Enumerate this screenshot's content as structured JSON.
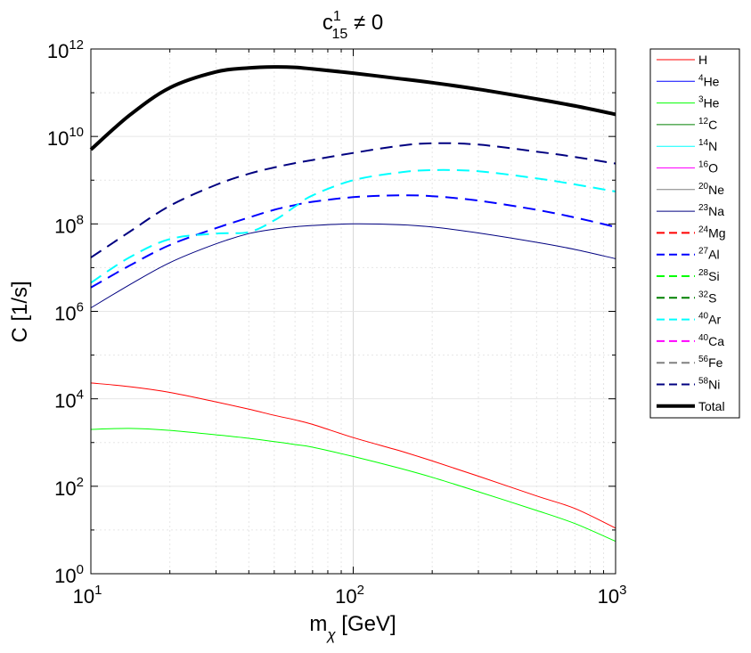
{
  "chart_data": {
    "type": "line",
    "title": {
      "base": "c",
      "sup": "1",
      "sub": "15",
      "rest": " ≠ 0"
    },
    "xlabel": {
      "base": "m",
      "sub": "χ",
      "rest": " [GeV]"
    },
    "ylabel": "C [1/s]",
    "xscale": "log",
    "yscale": "log",
    "xlim": [
      10,
      1000
    ],
    "ylim": [
      1,
      1000000000000
    ],
    "grid": true,
    "legend_position": "outside-right",
    "x_ticks": [
      {
        "value": 10,
        "base": "10",
        "exp": "1"
      },
      {
        "value": 100,
        "base": "10",
        "exp": "2"
      },
      {
        "value": 1000,
        "base": "10",
        "exp": "3"
      }
    ],
    "y_ticks": [
      {
        "value": 1,
        "base": "10",
        "exp": "0"
      },
      {
        "value": 100,
        "base": "10",
        "exp": "2"
      },
      {
        "value": 10000,
        "base": "10",
        "exp": "4"
      },
      {
        "value": 1000000,
        "base": "10",
        "exp": "6"
      },
      {
        "value": 100000000,
        "base": "10",
        "exp": "8"
      },
      {
        "value": 10000000000,
        "base": "10",
        "exp": "10"
      },
      {
        "value": 1000000000000,
        "base": "10",
        "exp": "12"
      }
    ],
    "x": [
      10,
      14,
      20,
      30,
      40,
      50,
      60,
      70,
      100,
      150,
      200,
      300,
      500,
      700,
      1000
    ],
    "series": [
      {
        "name": "H",
        "sup": "",
        "color": "#ff0000",
        "dash": "solid",
        "width": 1,
        "values": [
          23000,
          19000,
          14000,
          8500,
          5800,
          4200,
          3300,
          2600,
          1300,
          650,
          380,
          170,
          60,
          31,
          11
        ]
      },
      {
        "name": "He",
        "sup": "4",
        "color": "#0000ff",
        "dash": "solid",
        "width": 1,
        "values": null
      },
      {
        "name": "He",
        "sup": "3",
        "color": "#00ff00",
        "dash": "solid",
        "width": 1,
        "values": [
          2000,
          2100,
          1900,
          1500,
          1250,
          1050,
          900,
          780,
          480,
          260,
          160,
          75,
          28,
          14,
          5.5
        ]
      },
      {
        "name": "C",
        "sup": "12",
        "color": "#008000",
        "dash": "solid",
        "width": 1,
        "values": null
      },
      {
        "name": "N",
        "sup": "14",
        "color": "#00ffff",
        "dash": "solid",
        "width": 1,
        "values": null
      },
      {
        "name": "O",
        "sup": "16",
        "color": "#ff00ff",
        "dash": "solid",
        "width": 1,
        "values": null
      },
      {
        "name": "Ne",
        "sup": "20",
        "color": "#808080",
        "dash": "solid",
        "width": 1,
        "values": null
      },
      {
        "name": "Na",
        "sup": "23",
        "color": "#000080",
        "dash": "solid",
        "width": 1,
        "values": [
          1200000,
          4000000,
          13000000,
          35000000,
          60000000,
          76000000,
          86000000,
          92000000,
          100000000,
          96000000,
          85000000,
          62000000,
          38000000,
          26000000,
          16000000
        ]
      },
      {
        "name": "Mg",
        "sup": "24",
        "color": "#ff0000",
        "dash": "dashed",
        "width": 2,
        "values": null
      },
      {
        "name": "Al",
        "sup": "27",
        "color": "#0000ff",
        "dash": "dashed",
        "width": 2,
        "values": [
          3500000,
          11000000,
          33000000,
          80000000,
          140000000,
          210000000,
          270000000,
          320000000,
          410000000,
          450000000,
          430000000,
          340000000,
          210000000,
          140000000,
          85000000
        ]
      },
      {
        "name": "Si",
        "sup": "28",
        "color": "#00ff00",
        "dash": "dashed",
        "width": 2,
        "values": null
      },
      {
        "name": "S",
        "sup": "32",
        "color": "#008000",
        "dash": "dashed",
        "width": 2,
        "values": null
      },
      {
        "name": "Ar",
        "sup": "40",
        "color": "#00ffff",
        "dash": "dashed",
        "width": 2,
        "values": [
          4500000,
          17000000,
          45000000,
          60000000,
          65000000,
          120000000,
          250000000,
          450000000,
          1000000000,
          1500000000,
          1700000000,
          1600000000,
          1100000000,
          800000000,
          550000000
        ]
      },
      {
        "name": "Ca",
        "sup": "40",
        "color": "#ff00ff",
        "dash": "dashed",
        "width": 2,
        "values": null
      },
      {
        "name": "Fe",
        "sup": "56",
        "color": "#808080",
        "dash": "dashed",
        "width": 2,
        "values": null
      },
      {
        "name": "Ni",
        "sup": "58",
        "color": "#000080",
        "dash": "dashed",
        "width": 2,
        "values": [
          17000000,
          65000000,
          260000000,
          780000000,
          1400000000,
          1950000000,
          2450000000,
          2900000000,
          4200000000,
          6100000000,
          7000000000,
          6500000000,
          4500000000,
          3400000000,
          2400000000
        ]
      },
      {
        "name": "Total",
        "sup": "",
        "color": "#000000",
        "dash": "solid",
        "width": 4,
        "values": [
          5000000000,
          30000000000,
          130000000000,
          300000000000,
          370000000000,
          390000000000,
          380000000000,
          350000000000,
          280000000000,
          210000000000,
          170000000000,
          120000000000,
          72000000000,
          50000000000,
          32000000000
        ]
      }
    ]
  }
}
